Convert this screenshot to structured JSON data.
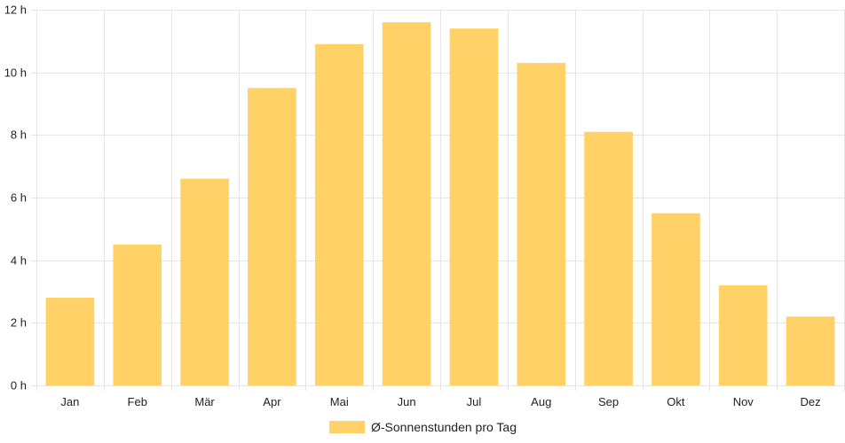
{
  "chart_data": {
    "type": "bar",
    "categories": [
      "Jan",
      "Feb",
      "Mär",
      "Apr",
      "Mai",
      "Jun",
      "Jul",
      "Aug",
      "Sep",
      "Okt",
      "Nov",
      "Dez"
    ],
    "series": [
      {
        "name": "Ø-Sonnenstunden pro Tag",
        "values": [
          2.8,
          4.5,
          6.6,
          9.5,
          10.9,
          11.6,
          11.4,
          10.3,
          8.1,
          5.5,
          3.2,
          2.2
        ]
      }
    ],
    "ylim": [
      0,
      12
    ],
    "yticks": [
      0,
      2,
      4,
      6,
      8,
      10,
      12
    ],
    "ytick_suffix": " h",
    "grid": true,
    "legend_position": "bottom",
    "bar_color": "#FFD166"
  }
}
